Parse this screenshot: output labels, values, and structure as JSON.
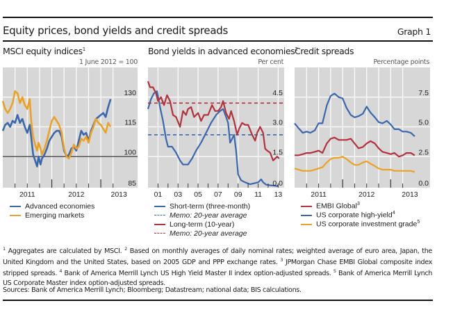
{
  "header": {
    "title": "Equity prices, bond yields and credit spreads",
    "graph_label": "Graph 1"
  },
  "colors": {
    "blue": "#3a66ae",
    "red": "#b2313a",
    "orange": "#eba224",
    "panel_bg": "#d7d7d7",
    "grid": "#ffffff",
    "baseline": "#333333"
  },
  "panels": [
    {
      "title": "MSCI equity indices",
      "title_sup": "1",
      "unit": "1 June 2012 = 100",
      "legend": [
        {
          "label": "Advanced economies",
          "color_key": "blue",
          "dashed": false,
          "italic": false,
          "sup": ""
        },
        {
          "label": "Emerging markets",
          "color_key": "orange",
          "dashed": false,
          "italic": false,
          "sup": ""
        }
      ]
    },
    {
      "title": "Bond yields in advanced economies",
      "title_sup": "2",
      "unit": "Per cent",
      "legend": [
        {
          "label": "Short-term (three-month)",
          "color_key": "blue",
          "dashed": false,
          "italic": false,
          "sup": ""
        },
        {
          "label": "Memo: 20-year average",
          "color_key": "blue",
          "dashed": true,
          "italic": true,
          "sup": ""
        },
        {
          "label": "Long-term (10-year)",
          "color_key": "red",
          "dashed": false,
          "italic": false,
          "sup": ""
        },
        {
          "label": "Memo: 20-year average",
          "color_key": "red",
          "dashed": true,
          "italic": true,
          "sup": ""
        }
      ]
    },
    {
      "title": "Credit spreads",
      "title_sup": "",
      "unit": "Percentage points",
      "legend": [
        {
          "label": "EMBI Global",
          "color_key": "red",
          "dashed": false,
          "italic": false,
          "sup": "3"
        },
        {
          "label": "US corporate high-yield",
          "color_key": "blue",
          "dashed": false,
          "italic": false,
          "sup": "4"
        },
        {
          "label": "US corporate investment grade",
          "color_key": "orange",
          "dashed": false,
          "italic": false,
          "sup": "5"
        }
      ]
    }
  ],
  "footnotes": [
    {
      "sup": "1",
      "text": " Aggregates are calculated by MSCI. "
    },
    {
      "sup": "2",
      "text": " Based on monthly averages of daily nominal rates; weighted average of euro area, Japan, the United Kingdom and the United States, based on 2005 GDP and PPP exchange rates. "
    },
    {
      "sup": "3",
      "text": " JPMorgan Chase EMBI Global composite index stripped spreads. "
    },
    {
      "sup": "4",
      "text": " Bank of America Merrill Lynch US High Yield Master II index option-adjusted spreads. "
    },
    {
      "sup": "5",
      "text": " Bank of America Merrill Lynch US Corporate Master index option-adjusted spreads."
    }
  ],
  "sources": "Sources: Bank of America Merrill Lynch; Bloomberg; Datastream; national data; BIS calculations.",
  "chart_data": [
    {
      "type": "line",
      "title": "MSCI equity indices",
      "ylabel": "1 June 2012 = 100",
      "xlim": [
        2011.0,
        2013.75
      ],
      "ylim": [
        85,
        145
      ],
      "yticks": [
        85,
        100,
        115,
        130
      ],
      "ytick_labels": [
        "85",
        "100",
        "115",
        "130"
      ],
      "xtick_labels": [
        {
          "label": "2011",
          "at": 2011.5
        },
        {
          "label": "2012",
          "at": 2012.5
        },
        {
          "label": "2013",
          "at": 2013.37
        }
      ],
      "major_ticks": [
        2012.0,
        2013.0
      ],
      "minor_ticks": [
        2011.25,
        2011.5,
        2011.75,
        2012.25,
        2012.5,
        2012.75,
        2013.25
      ],
      "grid": true,
      "reference_line": 100,
      "series": [
        {
          "name": "Advanced economies",
          "color_key": "blue",
          "x": [
            2011.0,
            2011.05,
            2011.1,
            2011.15,
            2011.2,
            2011.25,
            2011.3,
            2011.35,
            2011.4,
            2011.45,
            2011.5,
            2011.55,
            2011.58,
            2011.62,
            2011.66,
            2011.7,
            2011.73,
            2011.77,
            2011.8,
            2011.85,
            2011.9,
            2011.95,
            2012.0,
            2012.05,
            2012.1,
            2012.15,
            2012.2,
            2012.25,
            2012.3,
            2012.35,
            2012.4,
            2012.45,
            2012.5,
            2012.55,
            2012.6,
            2012.65,
            2012.7,
            2012.75,
            2012.8,
            2012.85,
            2012.9,
            2012.95,
            2013.0,
            2013.05,
            2013.1,
            2013.15,
            2013.2
          ],
          "values": [
            113,
            116,
            117,
            115,
            118,
            117,
            121,
            117,
            119,
            115,
            112,
            116,
            110,
            101,
            98,
            95,
            100,
            96,
            99,
            101,
            104,
            108,
            110,
            112,
            113,
            113,
            110,
            103,
            100,
            101,
            104,
            105,
            103,
            108,
            113,
            111,
            112,
            108,
            113,
            116,
            119,
            120,
            121,
            122,
            120,
            125,
            129
          ]
        },
        {
          "name": "Emerging markets",
          "color_key": "orange",
          "x": [
            2011.0,
            2011.05,
            2011.1,
            2011.15,
            2011.2,
            2011.25,
            2011.3,
            2011.35,
            2011.4,
            2011.45,
            2011.5,
            2011.55,
            2011.58,
            2011.62,
            2011.66,
            2011.7,
            2011.73,
            2011.77,
            2011.8,
            2011.85,
            2011.9,
            2011.95,
            2012.0,
            2012.05,
            2012.1,
            2012.15,
            2012.2,
            2012.25,
            2012.3,
            2012.35,
            2012.4,
            2012.45,
            2012.5,
            2012.55,
            2012.6,
            2012.65,
            2012.7,
            2012.75,
            2012.8,
            2012.85,
            2012.9,
            2012.95,
            2013.0,
            2013.05,
            2013.1,
            2013.15,
            2013.2
          ],
          "values": [
            128,
            124,
            122,
            124,
            127,
            133,
            132,
            127,
            130,
            126,
            124,
            129,
            118,
            110,
            106,
            103,
            107,
            104,
            101,
            104,
            108,
            113,
            118,
            120,
            118,
            116,
            112,
            104,
            100,
            99,
            102,
            106,
            104,
            105,
            109,
            108,
            110,
            107,
            112,
            115,
            119,
            117,
            116,
            114,
            112,
            117,
            115
          ]
        }
      ]
    },
    {
      "type": "line",
      "title": "Bond yields in advanced economies",
      "ylabel": "Per cent",
      "xlim": [
        2000.0,
        2013.6
      ],
      "ylim": [
        0,
        6
      ],
      "yticks": [
        0.0,
        1.5,
        3.0,
        4.5
      ],
      "ytick_labels": [
        "0.0",
        "1.5",
        "3.0",
        "4.5"
      ],
      "xtick_labels": [
        {
          "label": "01",
          "at": 2001.0
        },
        {
          "label": "03",
          "at": 2003.0
        },
        {
          "label": "05",
          "at": 2005.0
        },
        {
          "label": "07",
          "at": 2007.0
        },
        {
          "label": "09",
          "at": 2009.0
        },
        {
          "label": "11",
          "at": 2011.0
        },
        {
          "label": "13",
          "at": 2013.0
        }
      ],
      "minor_ticks": [
        2001,
        2002,
        2003,
        2004,
        2005,
        2006,
        2007,
        2008,
        2009,
        2010,
        2011,
        2012,
        2013
      ],
      "grid": true,
      "series": [
        {
          "name": "Short-term (three-month)",
          "color_key": "blue",
          "x": [
            2000.0,
            2000.3,
            2000.6,
            2000.9,
            2001.2,
            2001.5,
            2001.8,
            2002.0,
            2002.4,
            2002.8,
            2003.2,
            2003.5,
            2004.0,
            2004.4,
            2004.8,
            2005.3,
            2005.8,
            2006.3,
            2006.8,
            2007.2,
            2007.5,
            2007.8,
            2008.0,
            2008.2,
            2008.4,
            2008.6,
            2008.8,
            2009.0,
            2009.3,
            2009.7,
            2010.2,
            2010.6,
            2011.0,
            2011.3,
            2011.5,
            2011.8,
            2012.2,
            2012.6,
            2013.0
          ],
          "values": [
            3.9,
            4.4,
            4.7,
            4.8,
            4.0,
            3.3,
            2.4,
            2.0,
            2.0,
            1.7,
            1.3,
            1.1,
            1.1,
            1.4,
            1.8,
            2.2,
            2.7,
            3.2,
            3.6,
            3.8,
            3.9,
            3.5,
            3.2,
            2.2,
            2.4,
            2.6,
            1.8,
            0.6,
            0.3,
            0.2,
            0.1,
            0.15,
            0.2,
            0.35,
            0.2,
            0.08,
            0.05,
            0.03,
            0.0
          ]
        },
        {
          "name": "Memo: 20-year average (short-term)",
          "color_key": "blue",
          "dashed": true,
          "x": [
            2000.0,
            2013.6
          ],
          "values": [
            2.6,
            2.6
          ]
        },
        {
          "name": "Long-term (10-year)",
          "color_key": "red",
          "x": [
            2000.0,
            2000.2,
            2000.5,
            2000.8,
            2001.0,
            2001.3,
            2001.6,
            2001.9,
            2002.2,
            2002.5,
            2002.8,
            2003.2,
            2003.5,
            2003.8,
            2004.0,
            2004.3,
            2004.6,
            2005.0,
            2005.3,
            2005.6,
            2006.0,
            2006.4,
            2006.7,
            2007.0,
            2007.3,
            2007.5,
            2007.8,
            2008.1,
            2008.3,
            2008.6,
            2008.9,
            2009.1,
            2009.4,
            2009.7,
            2010.0,
            2010.4,
            2010.7,
            2010.9,
            2011.2,
            2011.5,
            2011.7,
            2011.9,
            2012.2,
            2012.5,
            2012.7,
            2012.9,
            2013.1
          ],
          "values": [
            5.3,
            5.0,
            5.0,
            4.7,
            4.3,
            4.5,
            4.1,
            4.6,
            4.3,
            3.6,
            3.5,
            3.0,
            3.8,
            3.6,
            3.9,
            4.0,
            3.5,
            3.7,
            3.3,
            3.6,
            3.6,
            4.1,
            3.8,
            3.8,
            4.0,
            4.3,
            3.7,
            3.4,
            3.8,
            3.3,
            2.6,
            2.9,
            3.2,
            3.1,
            3.1,
            2.6,
            2.3,
            2.7,
            3.0,
            2.7,
            1.9,
            1.8,
            1.7,
            1.3,
            1.4,
            1.5,
            1.4
          ]
        },
        {
          "name": "Memo: 20-year average (long-term)",
          "color_key": "red",
          "dashed": true,
          "x": [
            2000.0,
            2013.6
          ],
          "values": [
            4.2,
            4.2
          ]
        }
      ]
    },
    {
      "type": "line",
      "title": "Credit spreads",
      "ylabel": "Percentage points",
      "xlim": [
        2011.0,
        2013.82
      ],
      "ylim": [
        0,
        10
      ],
      "yticks": [
        0.0,
        2.5,
        5.0,
        7.5
      ],
      "ytick_labels": [
        "0.0",
        "2.5",
        "5.0",
        "7.5"
      ],
      "xtick_labels": [
        {
          "label": "2011",
          "at": 2011.5
        },
        {
          "label": "2012",
          "at": 2012.5
        },
        {
          "label": "2013",
          "at": 2013.4
        }
      ],
      "major_ticks": [
        2012.0,
        2013.0
      ],
      "minor_ticks": [
        2011.25,
        2011.5,
        2011.75,
        2012.25,
        2012.5,
        2012.75,
        2013.25
      ],
      "grid": true,
      "series": [
        {
          "name": "EMBI Global",
          "color_key": "red",
          "x": [
            2011.0,
            2011.08,
            2011.17,
            2011.25,
            2011.33,
            2011.42,
            2011.5,
            2011.58,
            2011.67,
            2011.75,
            2011.83,
            2011.92,
            2012.0,
            2012.08,
            2012.17,
            2012.25,
            2012.33,
            2012.42,
            2012.5,
            2012.58,
            2012.67,
            2012.75,
            2012.83,
            2012.92,
            2013.0,
            2013.08,
            2013.17,
            2013.25,
            2013.33,
            2013.42,
            2013.5
          ],
          "values": [
            2.6,
            2.6,
            2.7,
            2.8,
            2.8,
            2.9,
            3.0,
            2.8,
            3.6,
            4.0,
            4.1,
            3.9,
            3.9,
            3.9,
            4.0,
            3.6,
            3.2,
            3.3,
            3.6,
            3.8,
            3.6,
            3.2,
            2.9,
            2.8,
            2.7,
            2.8,
            2.5,
            2.6,
            2.8,
            2.8,
            2.6
          ]
        },
        {
          "name": "US corporate high-yield",
          "color_key": "blue",
          "x": [
            2011.0,
            2011.08,
            2011.17,
            2011.25,
            2011.33,
            2011.42,
            2011.5,
            2011.58,
            2011.67,
            2011.75,
            2011.83,
            2011.92,
            2012.0,
            2012.08,
            2012.17,
            2012.25,
            2012.33,
            2012.42,
            2012.5,
            2012.58,
            2012.67,
            2012.75,
            2012.83,
            2012.92,
            2013.0,
            2013.08,
            2013.17,
            2013.25,
            2013.33,
            2013.42,
            2013.5
          ],
          "values": [
            5.3,
            4.9,
            4.5,
            4.6,
            4.5,
            4.7,
            5.3,
            5.3,
            6.8,
            7.6,
            7.8,
            7.5,
            7.4,
            6.6,
            6.0,
            5.8,
            5.9,
            6.1,
            6.7,
            6.2,
            5.8,
            5.4,
            5.3,
            5.5,
            5.2,
            4.8,
            4.8,
            4.6,
            4.6,
            4.5,
            4.2
          ]
        },
        {
          "name": "US corporate investment grade",
          "color_key": "orange",
          "x": [
            2011.0,
            2011.08,
            2011.17,
            2011.25,
            2011.33,
            2011.42,
            2011.5,
            2011.58,
            2011.67,
            2011.75,
            2011.83,
            2011.92,
            2012.0,
            2012.08,
            2012.17,
            2012.25,
            2012.33,
            2012.42,
            2012.5,
            2012.58,
            2012.67,
            2012.75,
            2012.83,
            2012.92,
            2013.0,
            2013.08,
            2013.17,
            2013.25,
            2013.33,
            2013.42,
            2013.5
          ],
          "values": [
            1.5,
            1.4,
            1.3,
            1.3,
            1.3,
            1.4,
            1.5,
            1.6,
            2.0,
            2.3,
            2.4,
            2.4,
            2.5,
            2.3,
            2.0,
            1.8,
            1.8,
            2.0,
            2.1,
            1.9,
            1.7,
            1.5,
            1.4,
            1.4,
            1.4,
            1.3,
            1.3,
            1.3,
            1.3,
            1.3,
            1.2
          ]
        }
      ]
    }
  ]
}
